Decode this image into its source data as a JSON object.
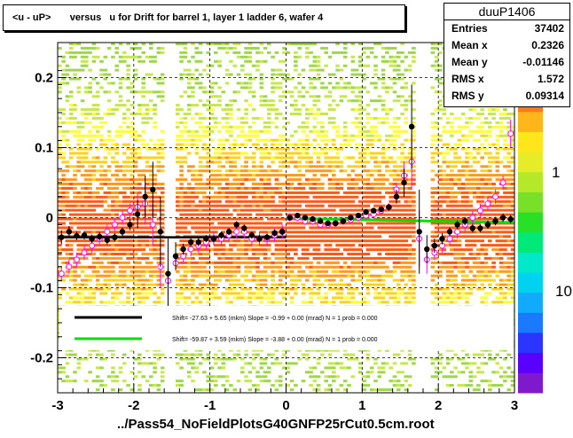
{
  "title": "<u - uP>       versus   u for Drift for barrel 1, layer 1 ladder 6, wafer 4",
  "stats": {
    "name": "duuP1406",
    "rows": [
      {
        "label": "Entries",
        "value": "37402"
      },
      {
        "label": "Mean x",
        "value": "0.2326"
      },
      {
        "label": "Mean y",
        "value": "-0.01146"
      },
      {
        "label": "RMS x",
        "value": "1.572"
      },
      {
        "label": "RMS y",
        "value": "0.09314"
      }
    ]
  },
  "footer": "../Pass54_NoFieldPlotsG40GNFP25rCut0.5cm.root",
  "chart_data": {
    "type": "heatmap",
    "xlim": [
      -3,
      3
    ],
    "ylim": [
      -0.25,
      0.25
    ],
    "x_ticks": [
      "-3",
      "-2",
      "-1",
      "0",
      "1",
      "2",
      "3"
    ],
    "y_ticks": [
      "-0.2",
      "-0.1",
      "0",
      "0.1",
      "0.2"
    ],
    "z_ticks": [
      "1",
      "10"
    ],
    "grid": true,
    "colors": {
      "black_fit": "#000000",
      "green_fit": "#00e000",
      "open_markers": "#ff00ff"
    },
    "legend": [
      {
        "text": "Shift=   -27.63 + 5.65 (mkm) Slope =    -0.99 + 0.00 (mrad)  N = 1 prob = 0.000",
        "color": "#000000"
      },
      {
        "text": "Shift=   -59.87 + 3.59 (mkm) Slope =    -3.88 + 0.00 (mrad)  N = 1 prob = 0.000",
        "color": "#00e000"
      }
    ],
    "profile_black": {
      "x": [
        -2.95,
        -2.85,
        -2.75,
        -2.65,
        -2.55,
        -2.45,
        -2.35,
        -2.25,
        -2.15,
        -2.05,
        -1.95,
        -1.85,
        -1.75,
        -1.65,
        -1.55,
        -1.45,
        -1.35,
        -1.25,
        -1.15,
        -1.05,
        -0.95,
        -0.85,
        -0.75,
        -0.65,
        -0.55,
        -0.45,
        -0.35,
        -0.25,
        -0.15,
        -0.05,
        0.05,
        0.15,
        0.25,
        0.35,
        0.45,
        0.55,
        0.65,
        0.75,
        0.85,
        0.95,
        1.05,
        1.15,
        1.25,
        1.35,
        1.45,
        1.55,
        1.65,
        1.75,
        1.85,
        1.95,
        2.05,
        2.15,
        2.25,
        2.35,
        2.45,
        2.55,
        2.65,
        2.75,
        2.85,
        2.95
      ],
      "y": [
        -0.028,
        -0.02,
        -0.026,
        -0.025,
        -0.03,
        -0.027,
        -0.032,
        -0.028,
        -0.02,
        -0.01,
        0.005,
        0.03,
        0.04,
        -0.02,
        -0.08,
        -0.055,
        -0.045,
        -0.035,
        -0.035,
        -0.03,
        -0.03,
        -0.025,
        -0.02,
        -0.01,
        -0.015,
        -0.025,
        -0.03,
        -0.028,
        -0.022,
        -0.02,
        0.0,
        0.003,
        0.0,
        -0.002,
        -0.005,
        -0.008,
        -0.008,
        -0.005,
        0.0,
        0.003,
        0.008,
        0.01,
        0.012,
        0.015,
        0.03,
        0.05,
        0.13,
        -0.02,
        -0.045,
        -0.04,
        -0.03,
        -0.02,
        -0.01,
        -0.005,
        -0.015,
        -0.015,
        -0.01,
        -0.005,
        0.0,
        -0.002
      ],
      "err": [
        0.01,
        0.008,
        0.006,
        0.006,
        0.006,
        0.006,
        0.006,
        0.006,
        0.006,
        0.008,
        0.02,
        0.03,
        0.04,
        0.05,
        0.05,
        0.02,
        0.008,
        0.006,
        0.006,
        0.005,
        0.005,
        0.005,
        0.005,
        0.005,
        0.005,
        0.005,
        0.005,
        0.005,
        0.005,
        0.005,
        0.004,
        0.004,
        0.004,
        0.004,
        0.004,
        0.004,
        0.004,
        0.004,
        0.004,
        0.004,
        0.004,
        0.004,
        0.004,
        0.005,
        0.01,
        0.02,
        0.06,
        0.06,
        0.02,
        0.01,
        0.008,
        0.006,
        0.006,
        0.006,
        0.006,
        0.006,
        0.006,
        0.006,
        0.006,
        0.006
      ]
    },
    "profile_open": {
      "x": [
        -2.95,
        -2.85,
        -2.75,
        -2.65,
        -2.55,
        -2.45,
        -2.35,
        -2.25,
        -2.15,
        -2.05,
        -1.95,
        -1.85,
        -1.75,
        -1.65,
        -1.55,
        -1.45,
        -1.35,
        -1.25,
        -1.15,
        -1.05,
        -0.95,
        -0.85,
        -0.75,
        -0.65,
        -0.55,
        -0.45,
        -0.35,
        -0.25,
        -0.15,
        -0.05,
        0.05,
        0.15,
        0.25,
        0.35,
        0.45,
        0.55,
        0.65,
        0.75,
        0.85,
        0.95,
        1.05,
        1.15,
        1.25,
        1.35,
        1.45,
        1.55,
        1.65,
        1.75,
        1.85,
        1.95,
        2.05,
        2.15,
        2.25,
        2.35,
        2.45,
        2.55,
        2.65,
        2.75,
        2.85,
        2.95
      ],
      "y": [
        -0.08,
        -0.07,
        -0.06,
        -0.05,
        -0.04,
        -0.03,
        -0.02,
        -0.01,
        0.0,
        0.01,
        0.015,
        0.02,
        -0.01,
        -0.07,
        -0.09,
        -0.065,
        -0.055,
        -0.045,
        -0.04,
        -0.035,
        -0.03,
        -0.03,
        -0.025,
        -0.02,
        -0.02,
        -0.03,
        -0.03,
        -0.03,
        -0.025,
        -0.02,
        0.0,
        0.0,
        -0.005,
        -0.005,
        -0.01,
        -0.01,
        -0.008,
        -0.005,
        -0.003,
        0.0,
        0.003,
        0.005,
        0.01,
        0.015,
        0.04,
        0.06,
        0.08,
        -0.03,
        -0.06,
        -0.05,
        -0.04,
        -0.03,
        -0.02,
        -0.01,
        0.0,
        0.01,
        0.02,
        0.03,
        0.05,
        0.12
      ],
      "err": [
        0.01,
        0.01,
        0.01,
        0.01,
        0.01,
        0.01,
        0.01,
        0.01,
        0.01,
        0.01,
        0.02,
        0.03,
        0.03,
        0.03,
        0.02,
        0.01,
        0.01,
        0.01,
        0.01,
        0.01,
        0.01,
        0.01,
        0.01,
        0.01,
        0.01,
        0.01,
        0.01,
        0.01,
        0.01,
        0.01,
        0.005,
        0.005,
        0.005,
        0.005,
        0.005,
        0.005,
        0.005,
        0.005,
        0.005,
        0.005,
        0.005,
        0.005,
        0.005,
        0.005,
        0.01,
        0.02,
        0.04,
        0.04,
        0.02,
        0.01,
        0.01,
        0.01,
        0.01,
        0.01,
        0.01,
        0.01,
        0.01,
        0.01,
        0.01,
        0.02
      ]
    },
    "fit_black": {
      "x": [
        -3,
        0
      ],
      "y": [
        -0.028,
        -0.028
      ]
    },
    "fit_green": {
      "x": [
        0,
        3
      ],
      "y": [
        -0.001,
        -0.007
      ]
    }
  }
}
